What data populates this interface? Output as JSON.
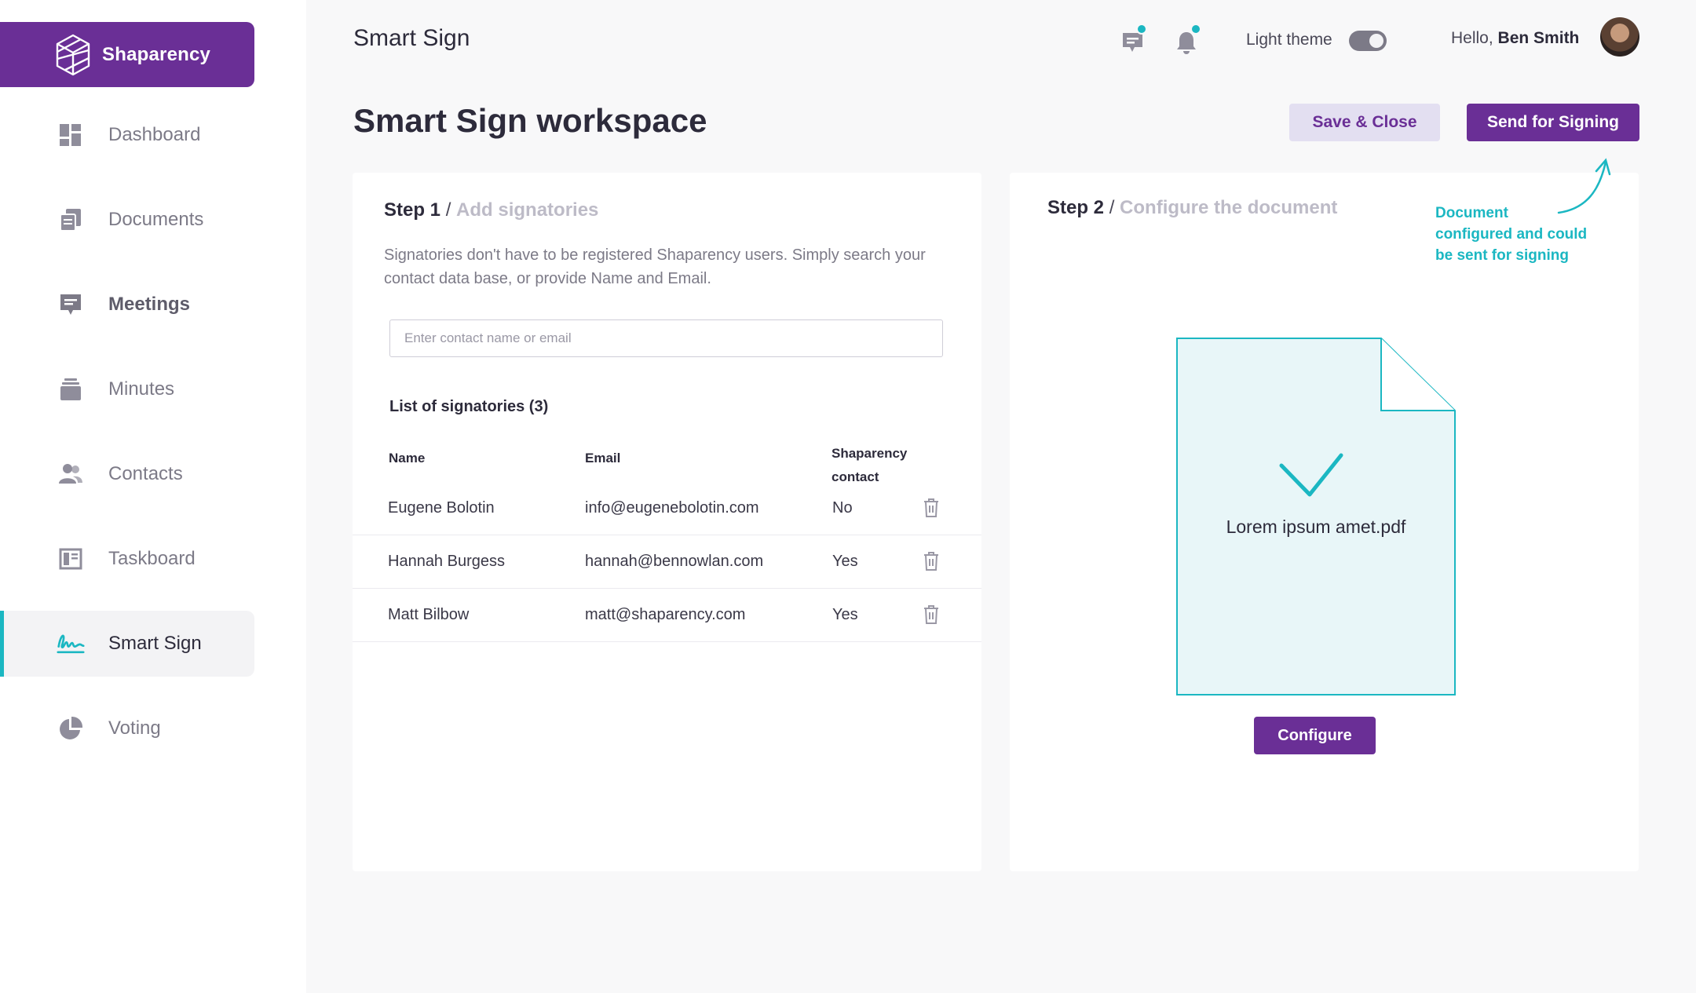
{
  "brand": {
    "name": "Shaparency"
  },
  "sidebar": {
    "items": [
      {
        "label": "Dashboard",
        "icon": "dashboard-icon"
      },
      {
        "label": "Documents",
        "icon": "documents-icon"
      },
      {
        "label": "Meetings",
        "icon": "meetings-icon"
      },
      {
        "label": "Minutes",
        "icon": "minutes-icon"
      },
      {
        "label": "Contacts",
        "icon": "contacts-icon"
      },
      {
        "label": "Taskboard",
        "icon": "taskboard-icon"
      },
      {
        "label": "Smart Sign",
        "icon": "signature-icon",
        "active": true
      },
      {
        "label": "Voting",
        "icon": "pie-chart-icon"
      }
    ]
  },
  "header": {
    "title": "Smart Sign",
    "theme_label": "Light theme",
    "greeting_prefix": "Hello,",
    "user_name": "Ben Smith"
  },
  "page": {
    "title": "Smart Sign workspace",
    "save_label": "Save & Close",
    "send_label": "Send for Signing"
  },
  "step1": {
    "label": "Step 1",
    "separator": "/",
    "subtitle": "Add signatories",
    "description": "Signatories don't have to be registered Shaparency users. Simply search your contact data base, or provide Name and Email.",
    "search_placeholder": "Enter contact name or email",
    "list_title": "List of signatories (3)",
    "columns": {
      "name": "Name",
      "email": "Email",
      "contact_line1": "Shaparency",
      "contact_line2": "contact"
    },
    "rows": [
      {
        "name": "Eugene Bolotin",
        "email": "info@eugenebolotin.com",
        "contact": "No"
      },
      {
        "name": "Hannah Burgess",
        "email": "hannah@bennowlan.com",
        "contact": "Yes"
      },
      {
        "name": "Matt Bilbow",
        "email": "matt@shaparency.com",
        "contact": "Yes"
      }
    ]
  },
  "step2": {
    "label": "Step 2",
    "separator": "/",
    "subtitle": "Configure the document",
    "note_line1": "Document",
    "note_line2": "configured and could",
    "note_line3": "be sent for signing",
    "file_name": "Lorem ipsum amet.pdf",
    "configure_label": "Configure"
  },
  "colors": {
    "brand": "#6a2f96",
    "accent": "#1bb7c2"
  }
}
